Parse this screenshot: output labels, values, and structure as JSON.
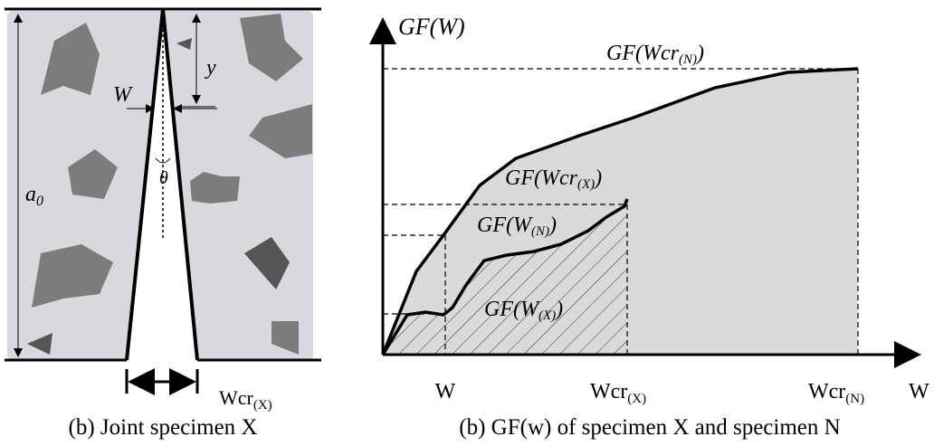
{
  "left_panel": {
    "labels": {
      "w": "W",
      "y": "y",
      "a0": {
        "main": "a",
        "sub": "0"
      },
      "theta": "θ",
      "wcr_x": {
        "main": "Wcr",
        "sub": "(X)"
      }
    },
    "caption": "(b) Joint specimen X"
  },
  "right_panel": {
    "y_axis_label": "GF(W)",
    "annotations": {
      "gf_wcr_n": {
        "main": "GF(Wcr",
        "sub": "(N)",
        "end": ")"
      },
      "gf_wcr_x": {
        "main": "GF(Wcr",
        "sub": "(X)",
        "end": ")"
      },
      "gf_w_n": {
        "main": "GF(W",
        "sub": "(N)",
        "end": ")"
      },
      "gf_w_x": {
        "main": "GF(W",
        "sub": "(X)",
        "end": ")"
      }
    },
    "x_labels": {
      "w": "W",
      "wcr_x": {
        "main": "Wcr",
        "sub": "(X)"
      },
      "wcr_n": {
        "main": "Wcr",
        "sub": "(N)"
      },
      "w_axis": "W"
    },
    "caption": "(b) GF(w) of specimen X and specimen N"
  }
}
